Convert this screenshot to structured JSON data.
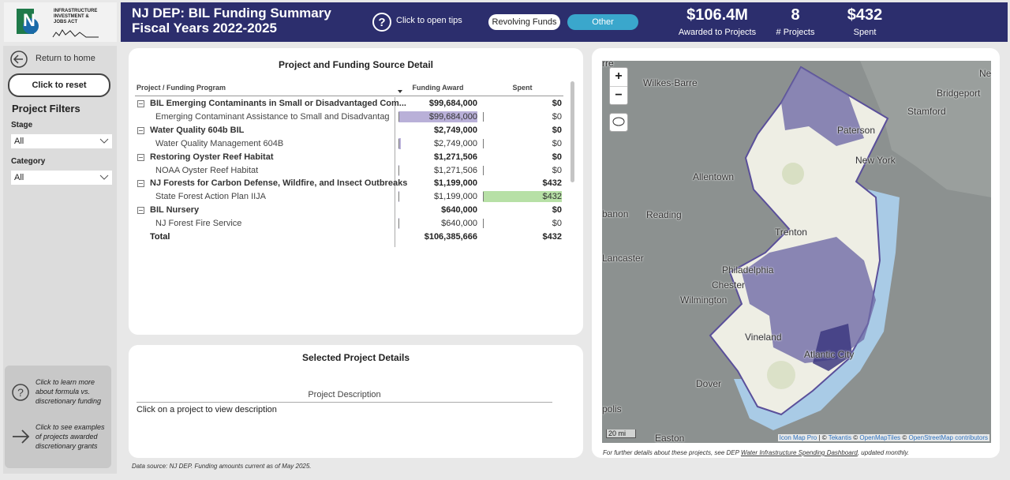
{
  "header": {
    "logo_lines": [
      "INFRASTRUCTURE",
      "INVESTMENT &",
      "JOBS ACT"
    ],
    "title_lines": [
      "NJ DEP: BIL Funding Summary",
      "Fiscal Years 2022-2025"
    ],
    "tips": "Click to open tips",
    "buttons": [
      "Revolving Funds",
      "Other"
    ],
    "kpis": [
      {
        "value": "$106.4M",
        "label": "Awarded to Projects"
      },
      {
        "value": "8",
        "label": "# Projects"
      },
      {
        "value": "$432",
        "label": "Spent"
      }
    ]
  },
  "sidebar": {
    "home": "Return to home",
    "reset": "Click to reset",
    "filters_title": "Project Filters",
    "filters": [
      {
        "label": "Stage",
        "value": "All"
      },
      {
        "label": "Category",
        "value": "All"
      }
    ],
    "help": [
      "Click to learn more about formula vs. discretionary funding",
      "Click to see examples of projects awarded discretionary grants"
    ]
  },
  "table": {
    "title": "Project and Funding Source Detail",
    "columns": [
      "Project / Funding Program",
      "Funding Award",
      "Spent"
    ],
    "groups": [
      {
        "name": "BIL Emerging Contaminants in Small or Disadvantaged Com...",
        "award": {
          "value": 99684000,
          "label": "$99,684,000"
        },
        "spent": {
          "value": 0,
          "label": "$0"
        },
        "children": [
          {
            "name": "Emerging Contaminant Assistance to Small and Disadvantaged...",
            "award": {
              "value": 99684000,
              "label": "$99,684,000"
            },
            "spent": {
              "value": 0,
              "label": "$0"
            }
          }
        ]
      },
      {
        "name": "Water Quality 604b BIL",
        "award": {
          "value": 2749000,
          "label": "$2,749,000"
        },
        "spent": {
          "value": 0,
          "label": "$0"
        },
        "children": [
          {
            "name": "Water Quality Management 604B",
            "award": {
              "value": 2749000,
              "label": "$2,749,000"
            },
            "spent": {
              "value": 0,
              "label": "$0"
            }
          }
        ]
      },
      {
        "name": "Restoring Oyster Reef Habitat",
        "award": {
          "value": 1271506,
          "label": "$1,271,506"
        },
        "spent": {
          "value": 0,
          "label": "$0"
        },
        "children": [
          {
            "name": "NOAA Oyster Reef Habitat",
            "award": {
              "value": 1271506,
              "label": "$1,271,506"
            },
            "spent": {
              "value": 0,
              "label": "$0"
            }
          }
        ]
      },
      {
        "name": "NJ Forests for Carbon Defense, Wildfire, and Insect Outbreaks",
        "award": {
          "value": 1199000,
          "label": "$1,199,000"
        },
        "spent": {
          "value": 432,
          "label": "$432"
        },
        "children": [
          {
            "name": "State Forest Action Plan IIJA",
            "award": {
              "value": 1199000,
              "label": "$1,199,000"
            },
            "spent": {
              "value": 432,
              "label": "$432"
            }
          }
        ]
      },
      {
        "name": "BIL Nursery",
        "award": {
          "value": 640000,
          "label": "$640,000"
        },
        "spent": {
          "value": 0,
          "label": "$0"
        },
        "children": [
          {
            "name": "NJ Forest Fire Service",
            "award": {
              "value": 640000,
              "label": "$640,000"
            },
            "spent": {
              "value": 0,
              "label": "$0"
            }
          }
        ]
      }
    ],
    "total": {
      "name": "Total",
      "award": {
        "value": 106385666,
        "label": "$106,385,666"
      },
      "spent": {
        "value": 432,
        "label": "$432"
      }
    }
  },
  "details": {
    "title": "Selected Project Details",
    "column": "Project Description",
    "placeholder": "Click on a project to view description"
  },
  "map": {
    "places": [
      "Wilkes-Barre",
      "Paterson",
      "Bridgeport",
      "Stamford",
      "New York",
      "Allentown",
      "Reading",
      "banon",
      "Trenton",
      "Lancaster",
      "Philadelphia",
      "Chester",
      "Wilmington",
      "Vineland",
      "Atlantic City",
      "Dover",
      "polis",
      "Easton",
      "New",
      "rre"
    ],
    "scale": "20 mi",
    "attribution": [
      "Icon Map Pro",
      " | © ",
      "Tekantis",
      " © ",
      "OpenMapTiles",
      " © ",
      "OpenStreetMap contributors"
    ],
    "controls": [
      "+",
      "−"
    ]
  },
  "map_note": [
    "For further details about these projects, see DEP ",
    "Water Infrastructure Spending Dashboard",
    ", updated monthly."
  ],
  "footer": "Data source: NJ DEP.  Funding amounts current as of May 2025."
}
